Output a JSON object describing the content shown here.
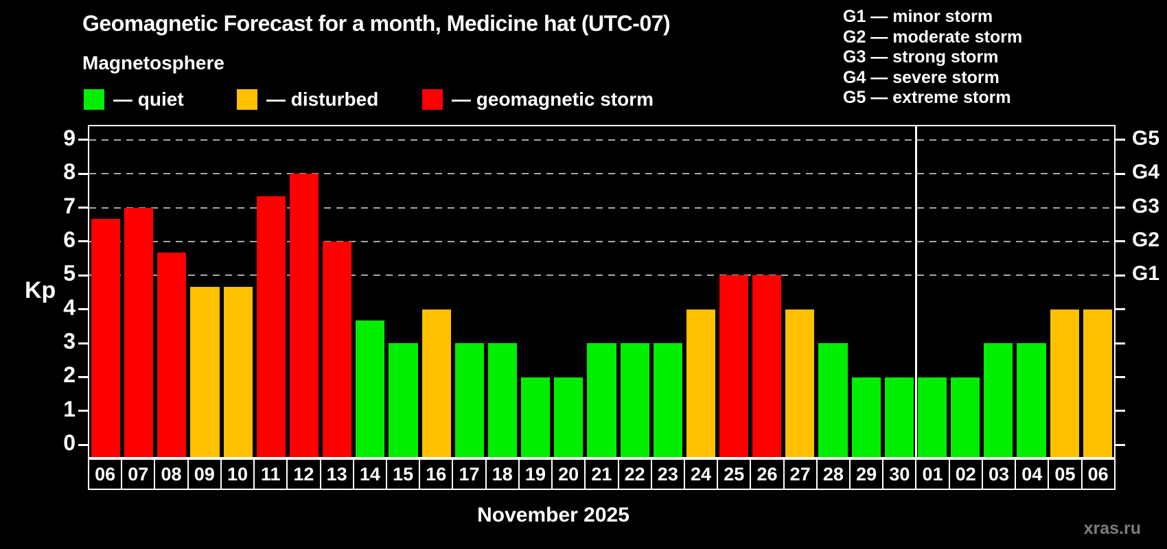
{
  "page": {
    "subtitle": "Magnetosphere",
    "watermark": "xras.ru"
  },
  "legend": {
    "items": [
      {
        "key": "quiet",
        "label": "— quiet"
      },
      {
        "key": "disturbed",
        "label": "— disturbed"
      },
      {
        "key": "storm",
        "label": "— geomagnetic storm"
      }
    ]
  },
  "storm_scale_legend": [
    "G1 — minor storm",
    "G2 — moderate storm",
    "G3 — strong storm",
    "G4 — severe storm",
    "G5 — extreme storm"
  ],
  "colors": {
    "quiet": "#00ee00",
    "disturbed": "#ffc000",
    "storm": "#ff0000",
    "grid": "#a8a8a8",
    "axis": "#ffffff",
    "watermark": "#7c7c7c"
  },
  "chart_data": {
    "type": "bar",
    "title": "Geomagnetic Forecast for a month, Medicine hat (UTC-07)",
    "ylabel": "Kp",
    "xlabel": "November 2025",
    "categories": [
      "06",
      "07",
      "08",
      "09",
      "10",
      "11",
      "12",
      "13",
      "14",
      "15",
      "16",
      "17",
      "18",
      "19",
      "20",
      "21",
      "22",
      "23",
      "24",
      "25",
      "26",
      "27",
      "28",
      "29",
      "30",
      "01",
      "02",
      "03",
      "04",
      "05",
      "06"
    ],
    "values": [
      6.67,
      7,
      5.67,
      4.67,
      4.67,
      7.33,
      8,
      6,
      3.67,
      3,
      4,
      3,
      3,
      2,
      2,
      3,
      3,
      3,
      4,
      5,
      5,
      4,
      3,
      2,
      2,
      2,
      2,
      3,
      3,
      4,
      4
    ],
    "statuses": [
      "storm",
      "storm",
      "storm",
      "disturbed",
      "disturbed",
      "storm",
      "storm",
      "storm",
      "quiet",
      "quiet",
      "disturbed",
      "quiet",
      "quiet",
      "quiet",
      "quiet",
      "quiet",
      "quiet",
      "quiet",
      "disturbed",
      "storm",
      "storm",
      "disturbed",
      "quiet",
      "quiet",
      "quiet",
      "quiet",
      "quiet",
      "quiet",
      "quiet",
      "disturbed",
      "disturbed"
    ],
    "yticks": [
      0,
      1,
      2,
      3,
      4,
      5,
      6,
      7,
      8,
      9
    ],
    "grid_levels": [
      5,
      6,
      7,
      8,
      9
    ],
    "right_axis_labels": [
      {
        "level": 5,
        "label": "G1"
      },
      {
        "level": 6,
        "label": "G2"
      },
      {
        "level": 7,
        "label": "G3"
      },
      {
        "level": 8,
        "label": "G4"
      },
      {
        "level": 9,
        "label": "G5"
      }
    ],
    "ylim": [
      -0.36,
      9.4
    ],
    "grid": "dashed horizontal lines at Kp 5-9 only",
    "legend_position": "top-left and top-right",
    "separator_after_column": 25
  }
}
